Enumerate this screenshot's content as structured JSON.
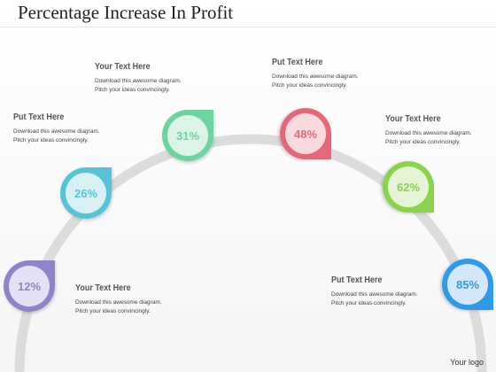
{
  "title": "Percentage Increase In Profit",
  "logo_text": "Your logo",
  "markers": [
    {
      "value": "12%",
      "color": "#8e84c8"
    },
    {
      "value": "26%",
      "color": "#56c4d6"
    },
    {
      "value": "31%",
      "color": "#6dd3a0"
    },
    {
      "value": "48%",
      "color": "#e4687a"
    },
    {
      "value": "62%",
      "color": "#8bd24e"
    },
    {
      "value": "85%",
      "color": "#2f9ae8"
    }
  ],
  "text_blocks": [
    {
      "heading": "Put Text Here",
      "line1": "Download this awesome diagram.",
      "line2": "Pitch your ideas convincingly."
    },
    {
      "heading": "Your Text Here",
      "line1": "Download this awesome diagram.",
      "line2": "Pitch your ideas convincingly."
    },
    {
      "heading": "Put Text Here",
      "line1": "Download this awesome diagram.",
      "line2": "Pitch your ideas convincingly."
    },
    {
      "heading": "Your Text Here",
      "line1": "Download this awesome diagram.",
      "line2": "Pitch your ideas convincingly."
    },
    {
      "heading": "Your Text Here",
      "line1": "Download this awesome diagram.",
      "line2": "Pitch your ideas convincingly."
    },
    {
      "heading": "Put Text Here",
      "line1": "Download this awesome diagram.",
      "line2": "Pitch your ideas convincingly."
    }
  ]
}
